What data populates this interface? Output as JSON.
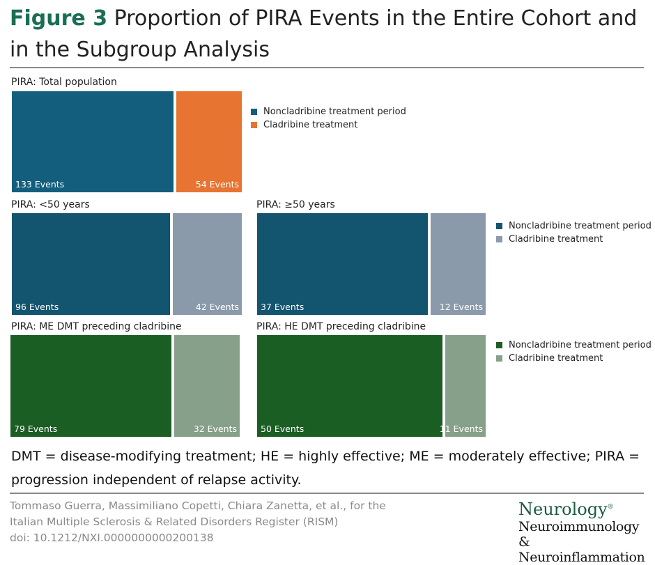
{
  "figure": {
    "label": "Figure 3",
    "title": "Proportion of PIRA Events in the Entire Cohort and in the Subgroup Analysis"
  },
  "chart_data": [
    {
      "type": "bar",
      "title": "PIRA: Total population",
      "series": [
        {
          "name": "Noncladribine treatment period",
          "value": 133,
          "label": "133 Events",
          "color": "#135e7c"
        },
        {
          "name": "Cladribine treatment",
          "value": 54,
          "label": "54 Events",
          "color": "#e87431"
        }
      ]
    },
    {
      "type": "bar",
      "title": "PIRA: <50 years",
      "series": [
        {
          "name": "Noncladribine treatment period",
          "value": 96,
          "label": "96 Events",
          "color": "#13546f"
        },
        {
          "name": "Cladribine treatment",
          "value": 42,
          "label": "42 Events",
          "color": "#8a9aab"
        }
      ]
    },
    {
      "type": "bar",
      "title": "PIRA: ≥50 years",
      "series": [
        {
          "name": "Noncladribine treatment period",
          "value": 37,
          "label": "37 Events",
          "color": "#13546f"
        },
        {
          "name": "Cladribine treatment",
          "value": 12,
          "label": "12 Events",
          "color": "#8a9aab"
        }
      ]
    },
    {
      "type": "bar",
      "title": "PIRA: ME DMT preceding cladribine",
      "series": [
        {
          "name": "Noncladribine treatment period",
          "value": 79,
          "label": "79 Events",
          "color": "#1b5e24"
        },
        {
          "name": "Cladribine treatment",
          "value": 32,
          "label": "32 Events",
          "color": "#87a08a"
        }
      ]
    },
    {
      "type": "bar",
      "title": "PIRA: HE DMT preceding cladribine",
      "series": [
        {
          "name": "Noncladribine treatment period",
          "value": 50,
          "label": "50 Events",
          "color": "#1b5e24"
        },
        {
          "name": "Cladribine treatment",
          "value": 11,
          "label": "11 Events",
          "color": "#87a08a"
        }
      ]
    }
  ],
  "legends": [
    {
      "items": [
        {
          "label": "Noncladribine treatment period",
          "color": "#135e7c"
        },
        {
          "label": "Cladribine treatment",
          "color": "#e87431"
        }
      ]
    },
    {
      "items": [
        {
          "label": "Noncladribine treatment period",
          "color": "#13546f"
        },
        {
          "label": "Cladribine treatment",
          "color": "#8a9aab"
        }
      ]
    },
    {
      "items": [
        {
          "label": "Noncladribine treatment period",
          "color": "#1b5e24"
        },
        {
          "label": "Cladribine treatment",
          "color": "#87a08a"
        }
      ]
    }
  ],
  "footnote": "DMT = disease-modifying treatment; HE = highly effective; ME = moderately effective; PIRA = progression independent of relapse activity.",
  "citation": {
    "line1": "Tommaso Guerra, Massimiliano Copetti, Chiara Zanetta, et al., for the",
    "line2": "Italian Multiple Sclerosis & Related Disorders Register (RISM)",
    "line3": "doi: 10.1212/NXI.0000000000200138"
  },
  "logo": {
    "brand": "Neurology",
    "mark": "®",
    "line1": "Neuroimmunology",
    "line2": "& Neuroinflammation"
  }
}
